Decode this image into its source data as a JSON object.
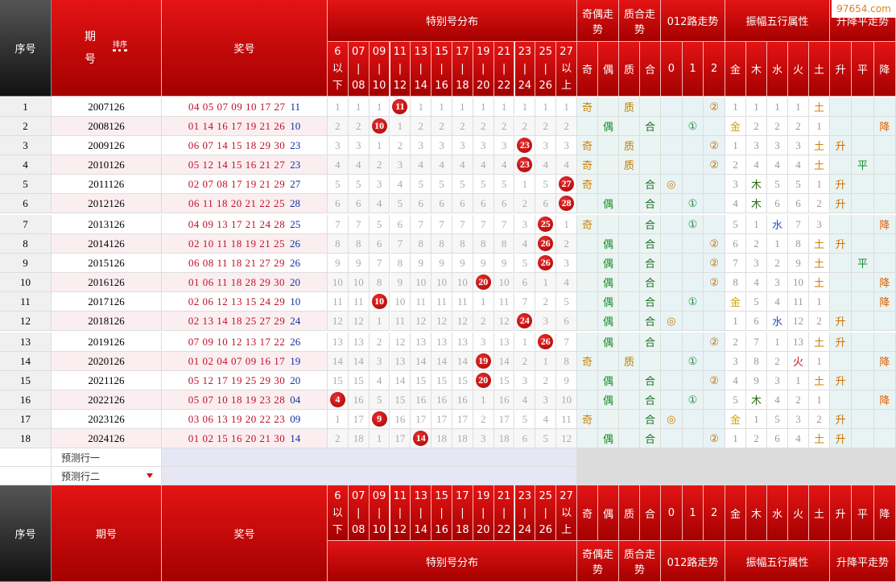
{
  "watermark": "97654.com",
  "header": {
    "seq": "序号",
    "issue": "期号",
    "sort": "排序",
    "numbers": "奖号",
    "groups": [
      "特别号分布",
      "奇偶走势",
      "质合走势",
      "012路走势",
      "振幅五行属性",
      "升降平走势"
    ],
    "ranges": [
      [
        "6",
        "以",
        "下"
      ],
      [
        "07",
        "|",
        "08"
      ],
      [
        "09",
        "|",
        "10"
      ],
      [
        "11",
        "|",
        "12"
      ],
      [
        "13",
        "|",
        "14"
      ],
      [
        "15",
        "|",
        "16"
      ],
      [
        "17",
        "|",
        "18"
      ],
      [
        "19",
        "|",
        "20"
      ],
      [
        "21",
        "|",
        "22"
      ],
      [
        "23",
        "|",
        "24"
      ],
      [
        "25",
        "|",
        "26"
      ],
      [
        "27",
        "以",
        "上"
      ]
    ],
    "subs": [
      "奇",
      "偶",
      "质",
      "合",
      "0",
      "1",
      "2",
      "金",
      "木",
      "水",
      "火",
      "土",
      "升",
      "平",
      "降"
    ]
  },
  "table": {
    "rows": [
      {
        "no": 1,
        "issue": "2007126",
        "numbers": "04 05 07 09 10 17 27",
        "special": "11",
        "dist": [
          1,
          1,
          1,
          {
            "ball": 11
          },
          1,
          1,
          1,
          1,
          1,
          1,
          1,
          1
        ],
        "oe": [
          "奇",
          null
        ],
        "pc": [
          "质",
          null
        ],
        "road": [
          null,
          null,
          "②"
        ],
        "wx": [
          1,
          1,
          1,
          1,
          "土"
        ],
        "trend": [
          null,
          null,
          null
        ]
      },
      {
        "no": 2,
        "issue": "2008126",
        "numbers": "01 14 16 17 19 21 26",
        "special": "10",
        "dist": [
          2,
          2,
          {
            "ball": 10
          },
          1,
          2,
          2,
          2,
          2,
          2,
          2,
          2,
          2
        ],
        "oe": [
          null,
          "偶"
        ],
        "pc": [
          null,
          "合"
        ],
        "road": [
          null,
          "①",
          null
        ],
        "wx": [
          "金",
          2,
          2,
          2,
          1
        ],
        "trend": [
          null,
          null,
          "降"
        ]
      },
      {
        "no": 3,
        "issue": "2009126",
        "numbers": "06 07 14 15 18 29 30",
        "special": "23",
        "dist": [
          3,
          3,
          1,
          2,
          3,
          3,
          3,
          3,
          3,
          {
            "ball": 23
          },
          3,
          3
        ],
        "oe": [
          "奇",
          null
        ],
        "pc": [
          "质",
          null
        ],
        "road": [
          null,
          null,
          "②"
        ],
        "wx": [
          1,
          3,
          3,
          3,
          "土"
        ],
        "trend": [
          "升",
          null,
          null
        ]
      },
      {
        "no": 4,
        "issue": "2010126",
        "numbers": "05 12 14 15 16 21 27",
        "special": "23",
        "dist": [
          4,
          4,
          2,
          3,
          4,
          4,
          4,
          4,
          4,
          {
            "ball": 23
          },
          4,
          4
        ],
        "oe": [
          "奇",
          null
        ],
        "pc": [
          "质",
          null
        ],
        "road": [
          null,
          null,
          "②"
        ],
        "wx": [
          2,
          4,
          4,
          4,
          "土"
        ],
        "trend": [
          null,
          "平",
          null
        ]
      },
      {
        "no": 5,
        "issue": "2011126",
        "numbers": "02 07 08 17 19 21 29",
        "special": "27",
        "dist": [
          5,
          5,
          3,
          4,
          5,
          5,
          5,
          5,
          5,
          1,
          5,
          {
            "ball": 27
          }
        ],
        "oe": [
          "奇",
          null
        ],
        "pc": [
          null,
          "合"
        ],
        "road": [
          "◎",
          null,
          null
        ],
        "wx": [
          3,
          "木",
          5,
          5,
          1
        ],
        "trend": [
          "升",
          null,
          null
        ]
      },
      {
        "no": 6,
        "issue": "2012126",
        "numbers": "06 11 18 20 21 22 25",
        "special": "28",
        "dist": [
          6,
          6,
          4,
          5,
          6,
          6,
          6,
          6,
          6,
          2,
          6,
          {
            "ball": 28
          }
        ],
        "oe": [
          null,
          "偶"
        ],
        "pc": [
          null,
          "合"
        ],
        "road": [
          null,
          "①",
          null
        ],
        "wx": [
          4,
          "木",
          6,
          6,
          2
        ],
        "trend": [
          "升",
          null,
          null
        ]
      },
      {
        "no": 7,
        "issue": "2013126",
        "numbers": "04 09 13 17 21 24 28",
        "special": "25",
        "dist": [
          7,
          7,
          5,
          6,
          7,
          7,
          7,
          7,
          7,
          3,
          {
            "ball": 25
          },
          1
        ],
        "oe": [
          "奇",
          null
        ],
        "pc": [
          null,
          "合"
        ],
        "road": [
          null,
          "①",
          null
        ],
        "wx": [
          5,
          1,
          "水",
          7,
          3
        ],
        "trend": [
          null,
          null,
          "降"
        ]
      },
      {
        "no": 8,
        "issue": "2014126",
        "numbers": "02 10 11 18 19 21 25",
        "special": "26",
        "dist": [
          8,
          8,
          6,
          7,
          8,
          8,
          8,
          8,
          8,
          4,
          {
            "ball": 26
          },
          2
        ],
        "oe": [
          null,
          "偶"
        ],
        "pc": [
          null,
          "合"
        ],
        "road": [
          null,
          null,
          "②"
        ],
        "wx": [
          6,
          2,
          1,
          8,
          "土"
        ],
        "trend": [
          "升",
          null,
          null
        ]
      },
      {
        "no": 9,
        "issue": "2015126",
        "numbers": "06 08 11 18 21 27 29",
        "special": "26",
        "dist": [
          9,
          9,
          7,
          8,
          9,
          9,
          9,
          9,
          9,
          5,
          {
            "ball": 26
          },
          3
        ],
        "oe": [
          null,
          "偶"
        ],
        "pc": [
          null,
          "合"
        ],
        "road": [
          null,
          null,
          "②"
        ],
        "wx": [
          7,
          3,
          2,
          9,
          "土"
        ],
        "trend": [
          null,
          "平",
          null
        ]
      },
      {
        "no": 10,
        "issue": "2016126",
        "numbers": "01 06 11 18 28 29 30",
        "special": "20",
        "dist": [
          10,
          10,
          8,
          9,
          10,
          10,
          10,
          {
            "ball": 20
          },
          10,
          6,
          1,
          4
        ],
        "oe": [
          null,
          "偶"
        ],
        "pc": [
          null,
          "合"
        ],
        "road": [
          null,
          null,
          "②"
        ],
        "wx": [
          8,
          4,
          3,
          10,
          "土"
        ],
        "trend": [
          null,
          null,
          "降"
        ]
      },
      {
        "no": 11,
        "issue": "2017126",
        "numbers": "02 06 12 13 15 24 29",
        "special": "10",
        "dist": [
          11,
          11,
          {
            "ball": 10
          },
          10,
          11,
          11,
          11,
          1,
          11,
          7,
          2,
          5
        ],
        "oe": [
          null,
          "偶"
        ],
        "pc": [
          null,
          "合"
        ],
        "road": [
          null,
          "①",
          null
        ],
        "wx": [
          "金",
          5,
          4,
          11,
          1
        ],
        "trend": [
          null,
          null,
          "降"
        ]
      },
      {
        "no": 12,
        "issue": "2018126",
        "numbers": "02 13 14 18 25 27 29",
        "special": "24",
        "dist": [
          12,
          12,
          1,
          11,
          12,
          12,
          12,
          2,
          12,
          {
            "ball": 24
          },
          3,
          6
        ],
        "oe": [
          null,
          "偶"
        ],
        "pc": [
          null,
          "合"
        ],
        "road": [
          "◎",
          null,
          null
        ],
        "wx": [
          1,
          6,
          "水",
          12,
          2
        ],
        "trend": [
          "升",
          null,
          null
        ]
      },
      {
        "no": 13,
        "issue": "2019126",
        "numbers": "07 09 10 12 13 17 22",
        "special": "26",
        "dist": [
          13,
          13,
          2,
          12,
          13,
          13,
          13,
          3,
          13,
          1,
          {
            "ball": 26
          },
          7
        ],
        "oe": [
          null,
          "偶"
        ],
        "pc": [
          null,
          "合"
        ],
        "road": [
          null,
          null,
          "②"
        ],
        "wx": [
          2,
          7,
          1,
          13,
          "土"
        ],
        "trend": [
          "升",
          null,
          null
        ]
      },
      {
        "no": 14,
        "issue": "2020126",
        "numbers": "01 02 04 07 09 16 17",
        "special": "19",
        "dist": [
          14,
          14,
          3,
          13,
          14,
          14,
          14,
          {
            "ball": 19
          },
          14,
          2,
          1,
          8
        ],
        "oe": [
          "奇",
          null
        ],
        "pc": [
          "质",
          null
        ],
        "road": [
          null,
          "①",
          null
        ],
        "wx": [
          3,
          8,
          2,
          "火",
          1
        ],
        "trend": [
          null,
          null,
          "降"
        ]
      },
      {
        "no": 15,
        "issue": "2021126",
        "numbers": "05 12 17 19 25 29 30",
        "special": "20",
        "dist": [
          15,
          15,
          4,
          14,
          15,
          15,
          15,
          {
            "ball": 20
          },
          15,
          3,
          2,
          9
        ],
        "oe": [
          null,
          "偶"
        ],
        "pc": [
          null,
          "合"
        ],
        "road": [
          null,
          null,
          "②"
        ],
        "wx": [
          4,
          9,
          3,
          1,
          "土"
        ],
        "trend": [
          "升",
          null,
          null
        ]
      },
      {
        "no": 16,
        "issue": "2022126",
        "numbers": "05 07 10 18 19 23 28",
        "special": "04",
        "dist": [
          {
            "ball": 4
          },
          16,
          5,
          15,
          16,
          16,
          16,
          1,
          16,
          4,
          3,
          10
        ],
        "oe": [
          null,
          "偶"
        ],
        "pc": [
          null,
          "合"
        ],
        "road": [
          null,
          "①",
          null
        ],
        "wx": [
          5,
          "木",
          4,
          2,
          1
        ],
        "trend": [
          null,
          null,
          "降"
        ]
      },
      {
        "no": 17,
        "issue": "2023126",
        "numbers": "03 06 13 19 20 22 23",
        "special": "09",
        "dist": [
          1,
          17,
          {
            "ball": 9
          },
          16,
          17,
          17,
          17,
          2,
          17,
          5,
          4,
          11
        ],
        "oe": [
          "奇",
          null
        ],
        "pc": [
          null,
          "合"
        ],
        "road": [
          "◎",
          null,
          null
        ],
        "wx": [
          "金",
          1,
          5,
          3,
          2
        ],
        "trend": [
          "升",
          null,
          null
        ]
      },
      {
        "no": 18,
        "issue": "2024126",
        "numbers": "01 02 15 16 20 21 30",
        "special": "14",
        "dist": [
          2,
          18,
          1,
          17,
          {
            "ball": 14
          },
          18,
          18,
          3,
          18,
          6,
          5,
          12
        ],
        "oe": [
          null,
          "偶"
        ],
        "pc": [
          null,
          "合"
        ],
        "road": [
          null,
          null,
          "②"
        ],
        "wx": [
          1,
          2,
          6,
          4,
          "土"
        ],
        "trend": [
          "升",
          null,
          null
        ]
      }
    ]
  },
  "forecast": [
    "预测行一",
    "预测行二"
  ]
}
